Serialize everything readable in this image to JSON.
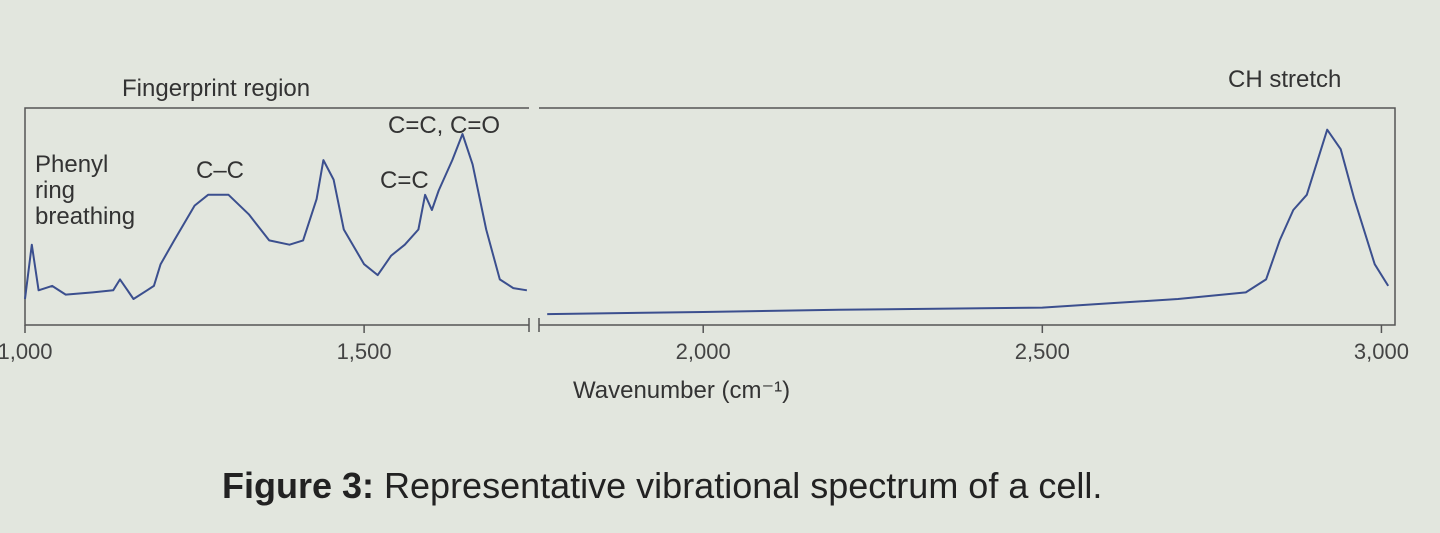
{
  "chart_data": {
    "type": "line",
    "region_labels": [
      "Fingerprint region",
      "CH stretch"
    ],
    "annotations": [
      "Phenyl ring breathing",
      "C–C",
      "C=C",
      "C=C, C=O"
    ],
    "x_label": "Wavenumber (cm⁻¹)",
    "caption_label": "Figure 3:",
    "caption": "Representative vibrational spectrum of a cell.",
    "color": "#3b4f8e",
    "x": [
      1000,
      1010,
      1020,
      1040,
      1060,
      1100,
      1130,
      1140,
      1160,
      1180,
      1190,
      1200,
      1220,
      1250,
      1270,
      1300,
      1330,
      1360,
      1390,
      1410,
      1430,
      1440,
      1455,
      1470,
      1500,
      1520,
      1540,
      1560,
      1580,
      1590,
      1600,
      1610,
      1630,
      1645,
      1660,
      1680,
      1700,
      1720,
      1740,
      1755,
      1770,
      2000,
      2200,
      2500,
      2600,
      2700,
      2800,
      2830,
      2850,
      2870,
      2890,
      2920,
      2940,
      2960,
      2990,
      3010
    ],
    "values": [
      12,
      37,
      16,
      18,
      14,
      15,
      16,
      21,
      12,
      16,
      18,
      28,
      39,
      55,
      60,
      60,
      51,
      39,
      37,
      39,
      58,
      76,
      67,
      44,
      28,
      23,
      32,
      37,
      44,
      60,
      53,
      62,
      76,
      88,
      74,
      44,
      21,
      17,
      16,
      null,
      5,
      6,
      7,
      8,
      10,
      12,
      15,
      21,
      39,
      53,
      60,
      90,
      81,
      58,
      28,
      18
    ],
    "xlim": [
      1000,
      3020
    ],
    "ylim": [
      0,
      100
    ],
    "xticks": [
      {
        "value": 1000,
        "label": "1,000"
      },
      {
        "value": 1500,
        "label": "1,500"
      },
      {
        "value": 2000,
        "label": "2,000"
      },
      {
        "value": 2500,
        "label": "2,500"
      },
      {
        "value": 3000,
        "label": "3,000"
      }
    ]
  }
}
